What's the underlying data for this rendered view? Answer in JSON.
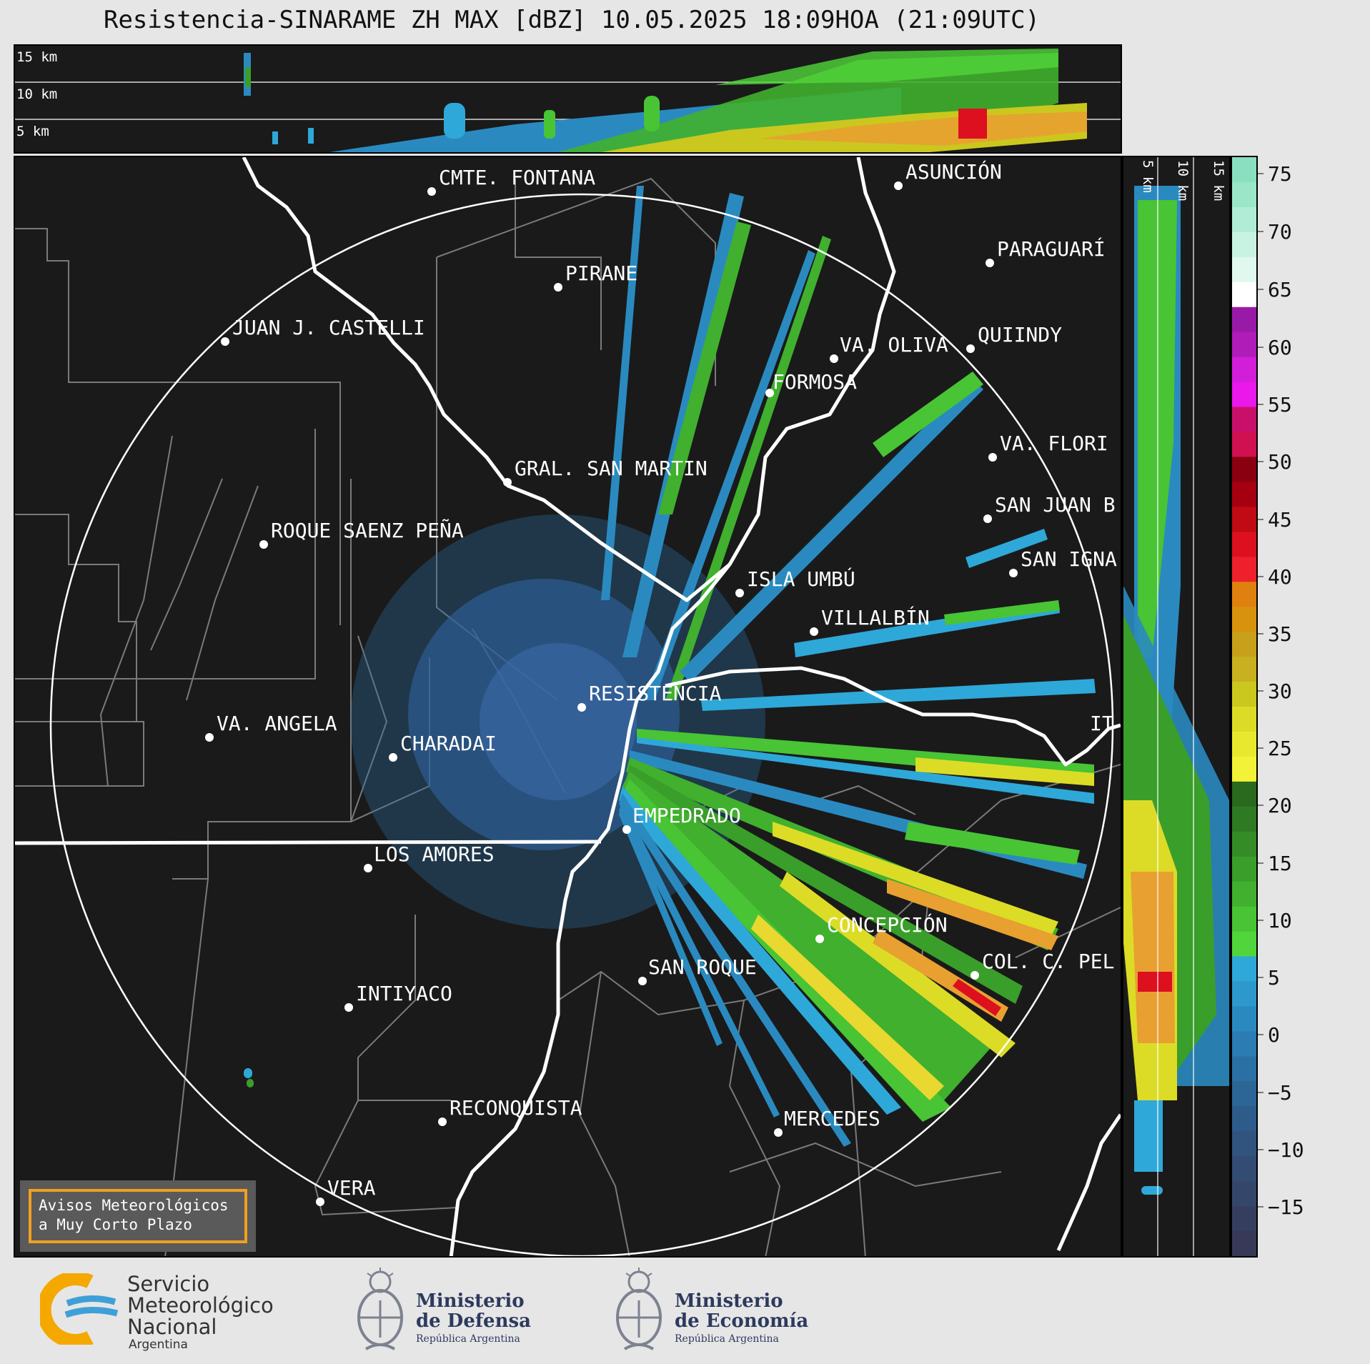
{
  "title": "Resistencia-SINARAME ZH MAX [dBZ] 10.05.2025 18:09HOA (21:09UTC)",
  "top_panel": {
    "height_labels": [
      "15 km",
      "10 km",
      "5 km"
    ]
  },
  "side_panel": {
    "height_labels": [
      "5 km",
      "10 km",
      "15 km"
    ]
  },
  "colorbar": {
    "ticks": [
      "75",
      "70",
      "65",
      "60",
      "55",
      "50",
      "45",
      "40",
      "35",
      "30",
      "25",
      "20",
      "15",
      "10",
      "5",
      "0",
      "−5",
      "−10",
      "−15"
    ],
    "colors": [
      "#8adfc0",
      "#9ae6c8",
      "#b0ecd6",
      "#c8f2e2",
      "#e0f8ee",
      "#ffffff",
      "#9a1aa8",
      "#b01cb8",
      "#d21ed8",
      "#ea18ea",
      "#c8106a",
      "#d01050",
      "#8a0010",
      "#a60010",
      "#c00a14",
      "#dc101e",
      "#ee202c",
      "#e0800e",
      "#d8920e",
      "#c8a01a",
      "#c8b020",
      "#cac81e",
      "#dcdc26",
      "#e8e82e",
      "#f2f236",
      "#2a6a1e",
      "#2e7a22",
      "#348c26",
      "#3a9e2a",
      "#40b02e",
      "#48c434",
      "#50d63a",
      "#2ea8d8",
      "#2c98cc",
      "#2a8ac0",
      "#2a7cb2",
      "#2a70a4",
      "#2c6696",
      "#2e5c8a",
      "#30547e",
      "#324c74",
      "#34466a",
      "#363e60",
      "#383858"
    ]
  },
  "map": {
    "cities": [
      {
        "name": "CMTE. FONTANA"
      },
      {
        "name": "ASUNCIÓN"
      },
      {
        "name": "PIRANE"
      },
      {
        "name": "PARAGUARÍ"
      },
      {
        "name": "JUAN J. CASTELLI"
      },
      {
        "name": "VA. OLIVA"
      },
      {
        "name": "QUIINDY"
      },
      {
        "name": "FORMOSA"
      },
      {
        "name": "VA. FLORI"
      },
      {
        "name": "GRAL. SAN MARTIN"
      },
      {
        "name": "SAN JUAN B"
      },
      {
        "name": "ROQUE SAENZ PEÑA"
      },
      {
        "name": "SAN IGNA"
      },
      {
        "name": "ISLA UMBÚ"
      },
      {
        "name": "VILLALBÍN"
      },
      {
        "name": "RESISTENCIA"
      },
      {
        "name": "VA. ANGELA"
      },
      {
        "name": "CHARADAI"
      },
      {
        "name": "IT"
      },
      {
        "name": "EMPEDRADO"
      },
      {
        "name": "LOS AMORES"
      },
      {
        "name": "CONCEPCIÓN"
      },
      {
        "name": "SAN ROQUE"
      },
      {
        "name": "COL. C. PEL"
      },
      {
        "name": "INTIYACO"
      },
      {
        "name": "RECONQUISTA"
      },
      {
        "name": "MERCEDES"
      },
      {
        "name": "VERA"
      }
    ]
  },
  "alert": {
    "line1": "Avisos Meteorológicos",
    "line2": "a Muy Corto Plazo"
  },
  "footer": {
    "smn": {
      "line1": "Servicio",
      "line2": "Meteorológico",
      "line3": "Nacional",
      "line4": "Argentina"
    },
    "defensa": {
      "line1": "Ministerio",
      "line2": "de Defensa",
      "line3": "República Argentina"
    },
    "economia": {
      "line1": "Ministerio",
      "line2": "de Economía",
      "line3": "República Argentina"
    }
  }
}
